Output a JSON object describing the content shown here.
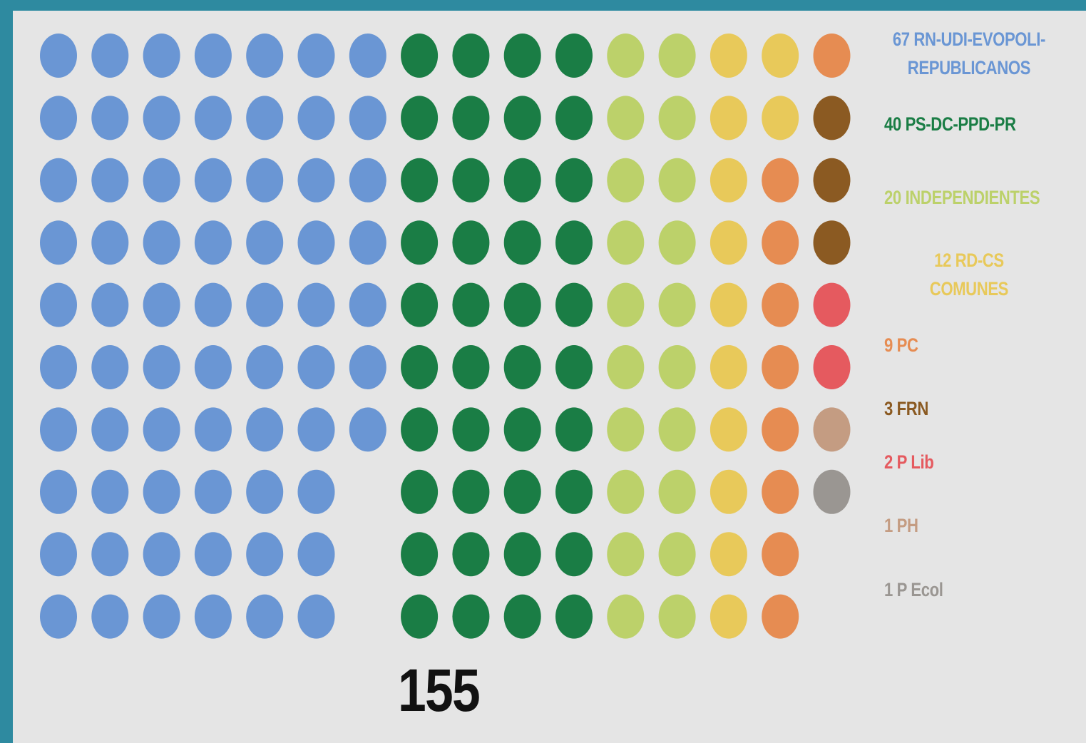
{
  "chart_data": {
    "type": "dots",
    "rows": 10,
    "total": 155,
    "series": [
      {
        "name": "RN-UDI-EVOPOLI-\nREPUBLICANOS",
        "color": "#6a96d4",
        "values": [
          67
        ]
      },
      {
        "name": "PS-DC-PPD-PR",
        "color": "#1a7d45",
        "values": [
          40
        ]
      },
      {
        "name": "INDEPENDIENTES",
        "color": "#bcd16a",
        "values": [
          20
        ]
      },
      {
        "name": "RD-CS\nCOMUNES",
        "color": "#e8c95a",
        "values": [
          12
        ]
      },
      {
        "name": "PC",
        "color": "#e68c52",
        "values": [
          9
        ]
      },
      {
        "name": "FRN",
        "color": "#8b5a22",
        "values": [
          3
        ]
      },
      {
        "name": "P Lib",
        "color": "#e55a5f",
        "values": [
          2
        ]
      },
      {
        "name": "PH",
        "color": "#c49c82",
        "values": [
          1
        ]
      },
      {
        "name": "P Ecol",
        "color": "#9a9692",
        "values": [
          1
        ]
      }
    ]
  }
}
